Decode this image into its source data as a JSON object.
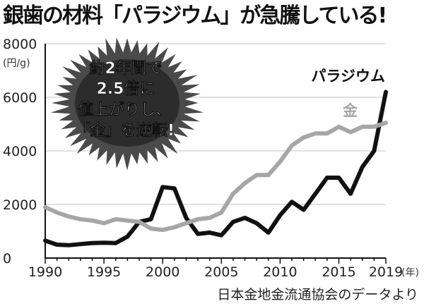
{
  "title": "銀歯の材料「パラジウム」が急騰している!",
  "source_note": "日本金地金流通協会のデータより",
  "callout": {
    "lines": [
      "約2年間で",
      "2.5倍に",
      "値上がりし、",
      "「金」を逆転!"
    ]
  },
  "chart_data": {
    "type": "line",
    "title": "銀歯の材料「パラジウム」が急騰している!",
    "xlabel": "",
    "ylabel": "",
    "y_unit": "(円/g)",
    "x_unit": "(年)",
    "xlim": [
      1990,
      2019
    ],
    "ylim": [
      0,
      8000
    ],
    "x_ticks": [
      1990,
      1995,
      2000,
      2005,
      2010,
      2015,
      2019
    ],
    "y_ticks": [
      0,
      2000,
      4000,
      6000,
      8000
    ],
    "grid": true,
    "x": [
      1990,
      1991,
      1992,
      1993,
      1994,
      1995,
      1996,
      1997,
      1998,
      1999,
      2000,
      2001,
      2002,
      2003,
      2004,
      2005,
      2006,
      2007,
      2008,
      2009,
      2010,
      2011,
      2012,
      2013,
      2014,
      2015,
      2016,
      2017,
      2018,
      2019
    ],
    "series": [
      {
        "name": "パラジウム",
        "color": "#111111",
        "values": [
          650,
          500,
          480,
          520,
          560,
          570,
          560,
          800,
          1350,
          1450,
          2650,
          2600,
          1500,
          900,
          950,
          850,
          1350,
          1500,
          1300,
          950,
          1600,
          2100,
          1800,
          2400,
          3000,
          3000,
          2400,
          3400,
          4000,
          6200
        ]
      },
      {
        "name": "金",
        "color": "#a6a6a6",
        "values": [
          1900,
          1700,
          1550,
          1450,
          1400,
          1300,
          1450,
          1400,
          1350,
          1100,
          1050,
          1150,
          1300,
          1450,
          1500,
          1700,
          2400,
          2800,
          3100,
          3100,
          3600,
          4200,
          4500,
          4650,
          4650,
          4900,
          4700,
          4900,
          4900,
          5050
        ]
      }
    ]
  }
}
